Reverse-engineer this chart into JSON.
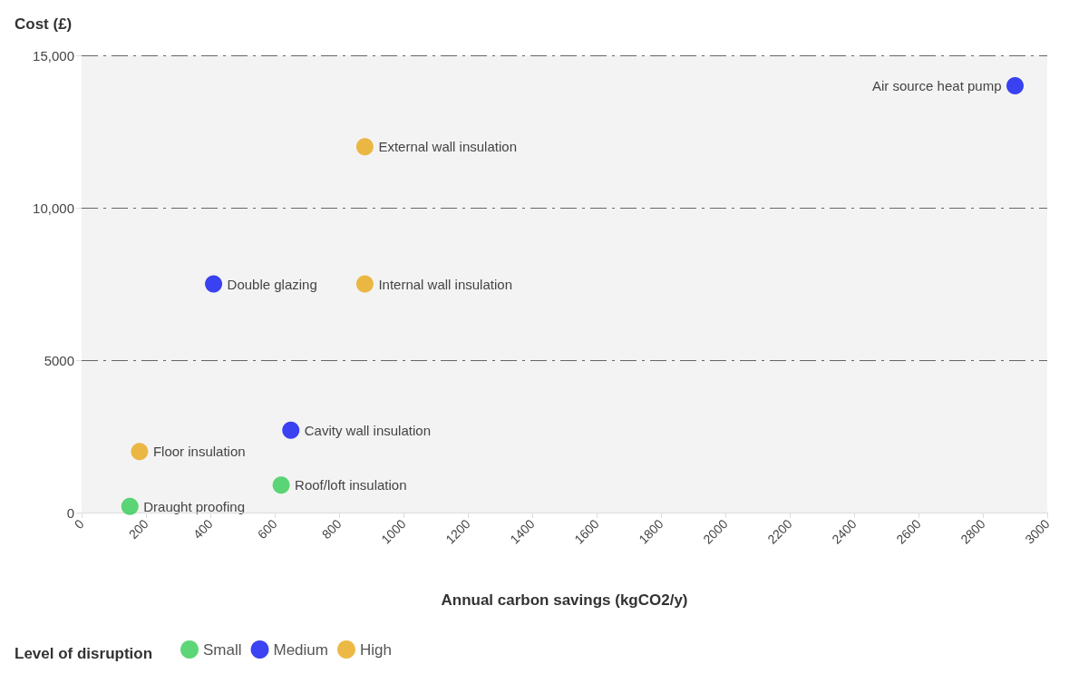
{
  "chart_data": {
    "type": "scatter",
    "ylabel": "Cost (£)",
    "xlabel": "Annual carbon savings (kgCO2/y)",
    "legend_title": "Level of disruption",
    "legend": "bottom left",
    "marker": "circle",
    "grid": "y",
    "xlim": [
      0,
      3000
    ],
    "xticks": [
      0,
      200,
      400,
      600,
      800,
      1000,
      1200,
      1400,
      1600,
      1800,
      2000,
      2200,
      2400,
      2600,
      2800,
      3000
    ],
    "ylim": [
      0,
      15000
    ],
    "yticks": [
      0,
      5000,
      {
        "value": 10000,
        "label": "10,000"
      },
      {
        "value": 15000,
        "label": "15,000"
      }
    ],
    "series": [
      {
        "name": "Small",
        "color": "#33cc55",
        "x": [
          150,
          620
        ],
        "values": [
          200,
          900
        ]
      },
      {
        "name": "Medium",
        "color": "#0a14f0",
        "x": [
          410,
          650,
          2900
        ],
        "values": [
          7500,
          2700,
          14000
        ]
      },
      {
        "name": "High",
        "color": "#e8a817",
        "x": [
          180,
          880,
          880
        ],
        "values": [
          2000,
          7500,
          12000
        ]
      }
    ],
    "annotations": [
      {
        "text": "Draught proofing",
        "x": 150,
        "y": 200
      },
      {
        "text": "Roof/loft insulation",
        "x": 620,
        "y": 900
      },
      {
        "text": "Double glazing",
        "x": 410,
        "y": 7500
      },
      {
        "text": "Cavity wall insulation",
        "x": 650,
        "y": 2700
      },
      {
        "text": "Air source heat pump",
        "x": 2900,
        "y": 14000
      },
      {
        "text": "Floor insulation",
        "x": 180,
        "y": 2000
      },
      {
        "text": "Internal wall insulation",
        "x": 880,
        "y": 7500
      },
      {
        "text": "External wall insulation",
        "x": 880,
        "y": 12000
      }
    ]
  }
}
